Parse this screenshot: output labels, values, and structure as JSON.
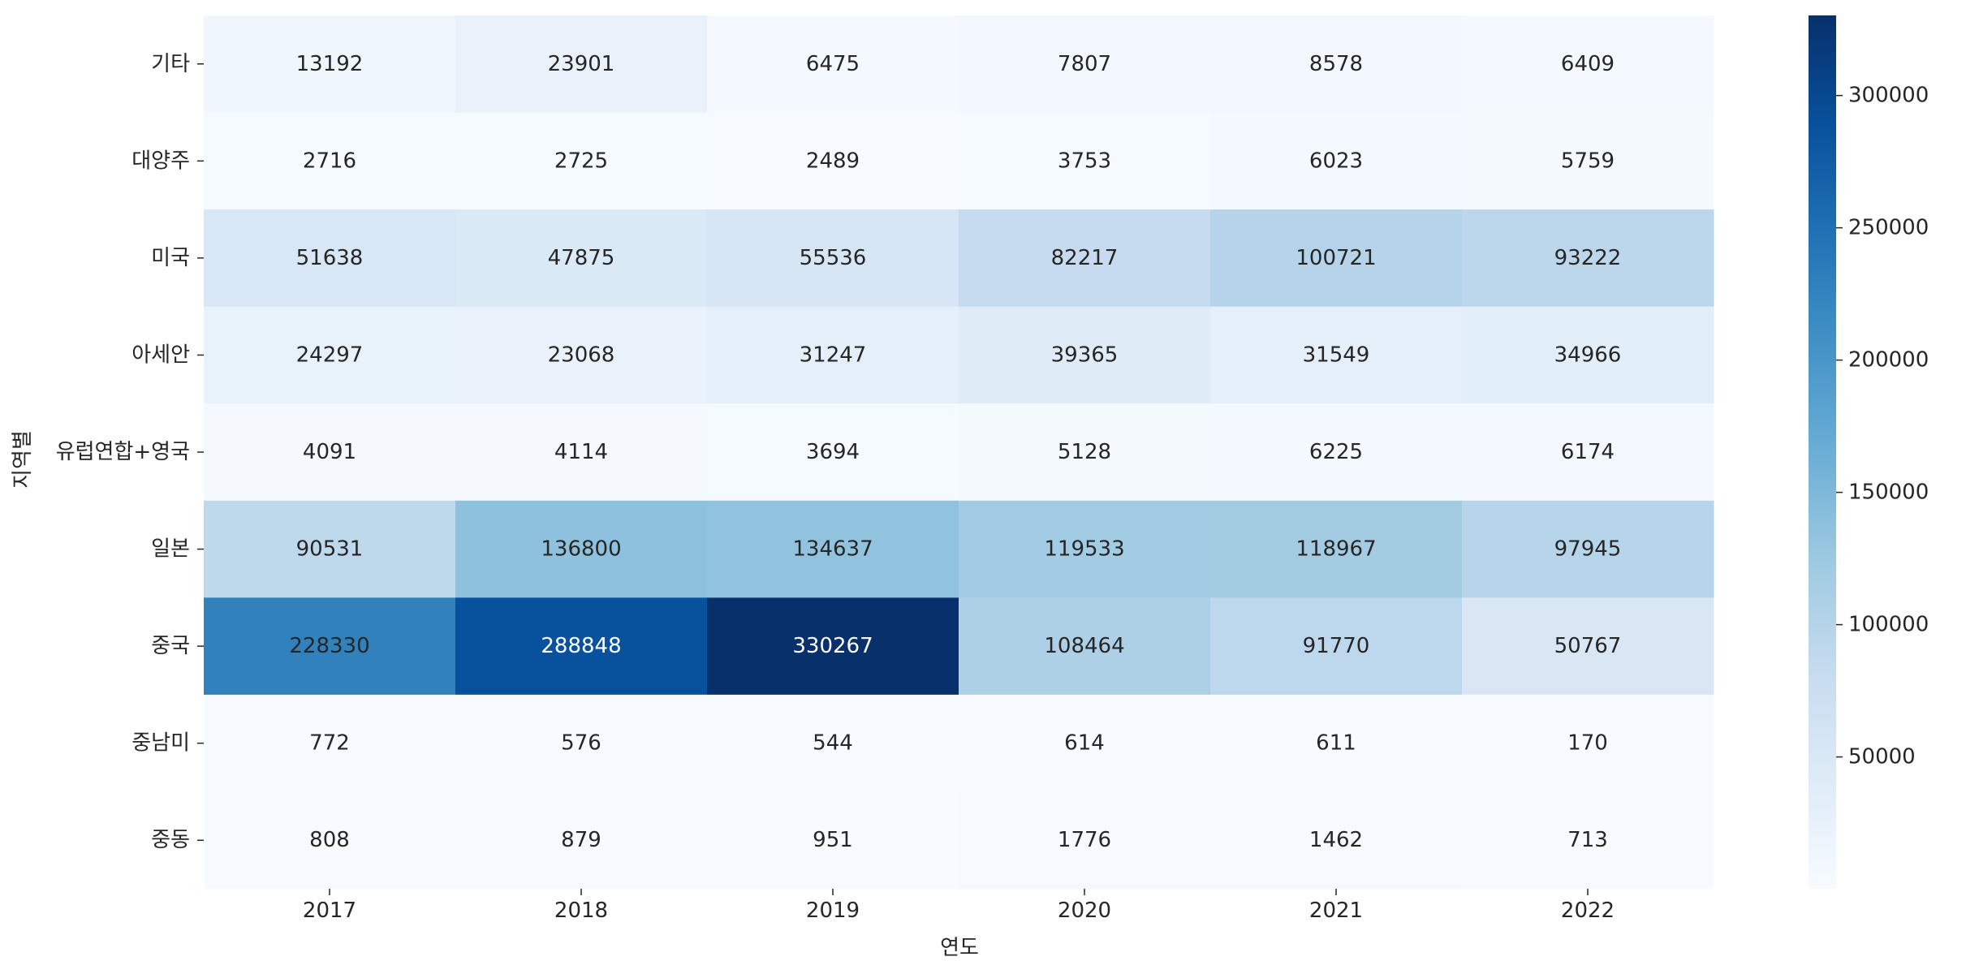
{
  "chart_data": {
    "type": "heatmap",
    "title": "",
    "xlabel": "연도",
    "ylabel": "지역별",
    "x_categories": [
      "2017",
      "2018",
      "2019",
      "2020",
      "2021",
      "2022"
    ],
    "y_categories": [
      "기타",
      "대양주",
      "미국",
      "아세안",
      "유럽연합+영국",
      "일본",
      "중국",
      "중남미",
      "중동"
    ],
    "values": [
      [
        13192,
        23901,
        6475,
        7807,
        8578,
        6409
      ],
      [
        2716,
        2725,
        2489,
        3753,
        6023,
        5759
      ],
      [
        51638,
        47875,
        55536,
        82217,
        100721,
        93222
      ],
      [
        24297,
        23068,
        31247,
        39365,
        31549,
        34966
      ],
      [
        4091,
        4114,
        3694,
        5128,
        6225,
        6174
      ],
      [
        90531,
        136800,
        134637,
        119533,
        118967,
        97945
      ],
      [
        228330,
        288848,
        330267,
        108464,
        91770,
        50767
      ],
      [
        772,
        576,
        544,
        614,
        611,
        170
      ],
      [
        808,
        879,
        951,
        1776,
        1462,
        713
      ]
    ],
    "colormap": "Blues",
    "colorbar": {
      "min": 170,
      "max": 330267,
      "ticks": [
        "50000",
        "100000",
        "150000",
        "200000",
        "250000",
        "300000"
      ]
    }
  }
}
